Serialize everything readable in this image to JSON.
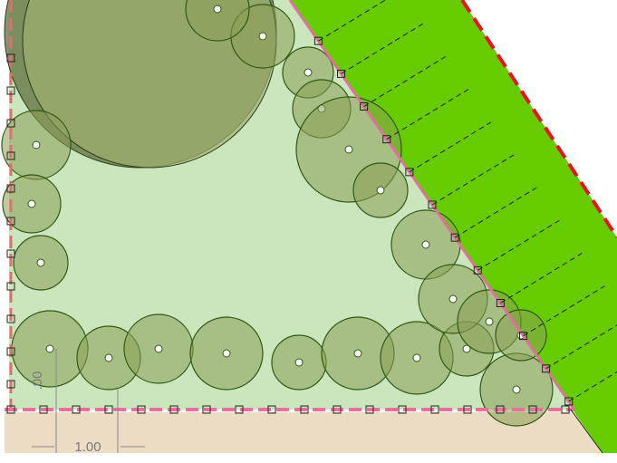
{
  "dimensions": [
    {
      "label": "1.00"
    },
    {
      "label": ".00"
    }
  ]
}
